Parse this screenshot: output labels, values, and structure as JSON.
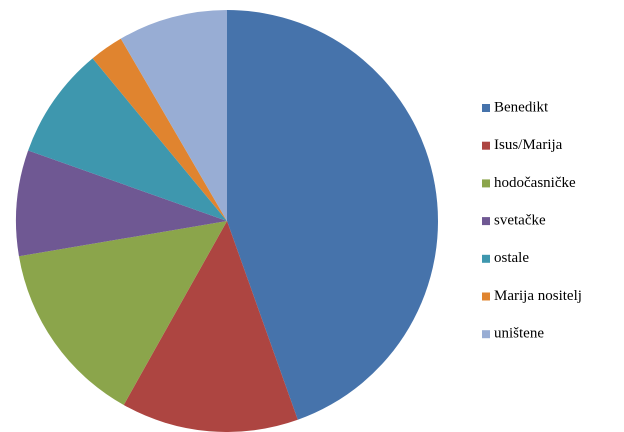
{
  "chart_data": {
    "type": "pie",
    "categories": [
      "Benedikt",
      "Isus/Marija",
      "hodočasničke",
      "svetačke",
      "ostale",
      "Marija nositelj",
      "uništene"
    ],
    "values": [
      44.6,
      13.6,
      14.2,
      8.1,
      8.6,
      2.6,
      8.4
    ],
    "colors": [
      "#4673ab",
      "#ad4541",
      "#8ba54b",
      "#6f5893",
      "#3e97ae",
      "#e0842f",
      "#98add4"
    ],
    "legend": "right"
  }
}
